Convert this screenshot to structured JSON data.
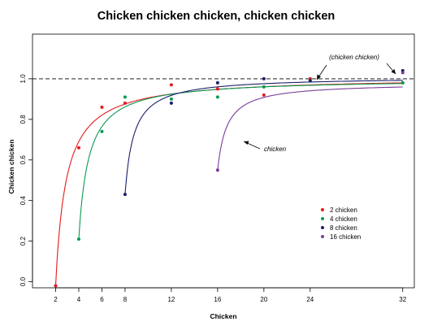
{
  "chart_data": {
    "type": "scatter",
    "title": "Chicken chicken chicken, chicken chicken",
    "xlabel": "Chicken",
    "ylabel": "Chicken chicken",
    "xlim": [
      0,
      33
    ],
    "ylim": [
      -0.03,
      1.22
    ],
    "x_ticks": [
      2,
      4,
      6,
      8,
      12,
      16,
      20,
      24,
      32
    ],
    "x_tick_labels": [
      "2",
      "4",
      "6",
      "8",
      "12",
      "16",
      "20",
      "24",
      "32"
    ],
    "y_ticks": [
      0.0,
      0.2,
      0.4,
      0.6,
      0.8,
      1.0
    ],
    "y_tick_labels": [
      "0.0",
      "0.2",
      "0.4",
      "0.6",
      "0.8",
      "1.0"
    ],
    "reference_line": {
      "y": 1.0,
      "style": "dashed"
    },
    "grid": false,
    "legend_position": "lower-right",
    "series": [
      {
        "name": "2 chicken",
        "color": "#e41a1c",
        "start": 2,
        "x": [
          2,
          4,
          6,
          8,
          12,
          16,
          20,
          24,
          32
        ],
        "y": [
          -0.02,
          0.66,
          0.86,
          0.88,
          0.97,
          0.95,
          0.92,
          1.0,
          0.98
        ]
      },
      {
        "name": "4 chicken",
        "color": "#0a9b52",
        "start": 4,
        "x": [
          4,
          6,
          8,
          12,
          16,
          20,
          24,
          32
        ],
        "y": [
          0.21,
          0.74,
          0.91,
          0.9,
          0.91,
          0.96,
          0.99,
          0.98
        ]
      },
      {
        "name": "8 chicken",
        "color": "#1b1f6b",
        "start": 8,
        "x": [
          8,
          12,
          16,
          20,
          24,
          32
        ],
        "y": [
          0.43,
          0.88,
          0.98,
          1.0,
          0.99,
          1.04
        ]
      },
      {
        "name": "16 chicken",
        "color": "#7a3c9a",
        "start": 16,
        "x": [
          16,
          32
        ],
        "y": [
          0.55,
          1.03
        ]
      }
    ],
    "annotations": [
      {
        "text": "(chicken chicken)"
      },
      {
        "text": "chicken"
      }
    ]
  }
}
